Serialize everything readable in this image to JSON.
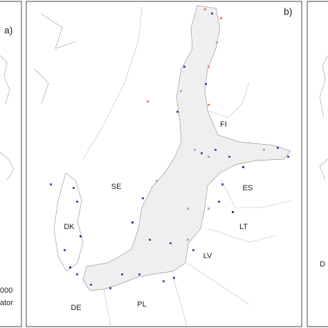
{
  "panel_a": {
    "label": "a)",
    "legend_fragments": [
      "000",
      "ator"
    ]
  },
  "panel_b": {
    "label": "b)",
    "region_labels": [
      "FI",
      "SE",
      "ES",
      "LT",
      "LV",
      "DK",
      "DE",
      "PL"
    ]
  },
  "panel_c": {
    "region_fragment": "D"
  }
}
